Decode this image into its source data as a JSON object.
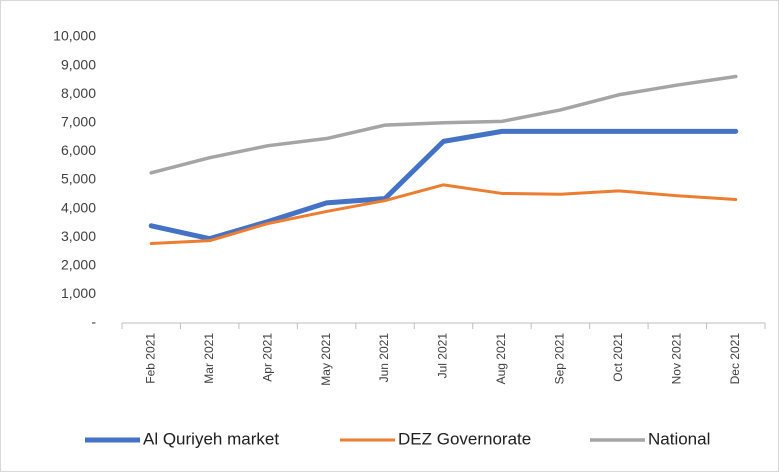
{
  "chart_data": {
    "type": "line",
    "categories": [
      "Feb 2021",
      "Mar 2021",
      "Apr 2021",
      "May 2021",
      "Jun 2021",
      "Jul 2021",
      "Aug 2021",
      "Sep 2021",
      "Oct 2021",
      "Nov 2021",
      "Dec 2021"
    ],
    "series": [
      {
        "name": "Al Quriyeh market",
        "color": "#4472c4",
        "values": [
          3400,
          2950,
          3550,
          4200,
          4350,
          6350,
          6700,
          6700,
          6700,
          6700,
          6700
        ]
      },
      {
        "name": "DEZ Governorate",
        "color": "#ed7d31",
        "values": [
          2780,
          2880,
          3480,
          3900,
          4280,
          4830,
          4530,
          4500,
          4620,
          4450,
          4320
        ]
      },
      {
        "name": "National",
        "color": "#a5a5a5",
        "values": [
          5250,
          5780,
          6200,
          6450,
          6920,
          7000,
          7050,
          7450,
          7980,
          8320,
          8620
        ]
      }
    ],
    "ylim": [
      0,
      10000
    ],
    "yticks": [
      {
        "value": 0,
        "label": "-"
      },
      {
        "value": 1000,
        "label": "1,000"
      },
      {
        "value": 2000,
        "label": "2,000"
      },
      {
        "value": 3000,
        "label": "3,000"
      },
      {
        "value": 4000,
        "label": "4,000"
      },
      {
        "value": 5000,
        "label": "5,000"
      },
      {
        "value": 6000,
        "label": "6,000"
      },
      {
        "value": 7000,
        "label": "7,000"
      },
      {
        "value": 8000,
        "label": "8,000"
      },
      {
        "value": 9000,
        "label": "9,000"
      },
      {
        "value": 10000,
        "label": "10,000"
      }
    ],
    "grid": false,
    "legend": "bottom"
  }
}
